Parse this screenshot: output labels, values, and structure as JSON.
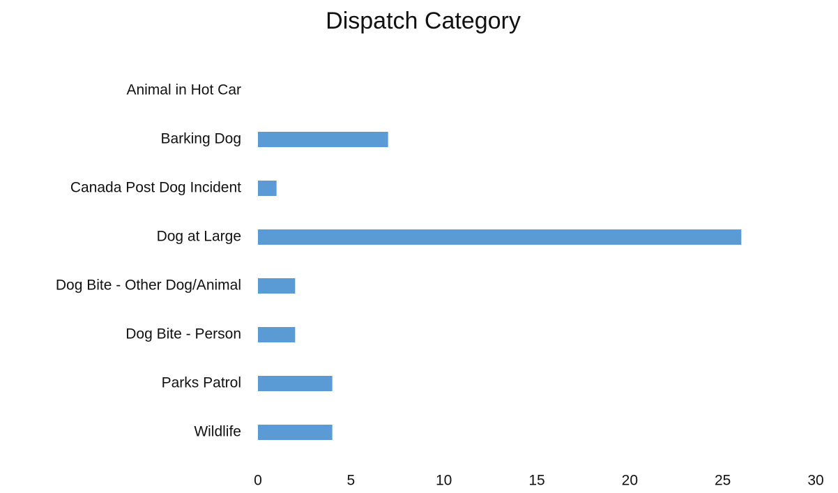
{
  "chart_data": {
    "type": "bar",
    "orientation": "horizontal",
    "title": "Dispatch Category",
    "categories": [
      "Animal in Hot Car",
      "Barking Dog",
      "Canada Post Dog Incident",
      "Dog at Large",
      "Dog Bite - Other Dog/Animal",
      "Dog Bite - Person",
      "Parks Patrol",
      "Wildlife"
    ],
    "values": [
      0,
      7,
      1,
      26,
      2,
      2,
      4,
      4
    ],
    "color": "#5b9bd5",
    "xlim": [
      0,
      30
    ],
    "xticks": [
      0,
      5,
      10,
      15,
      20,
      25,
      30
    ],
    "grid": false
  }
}
